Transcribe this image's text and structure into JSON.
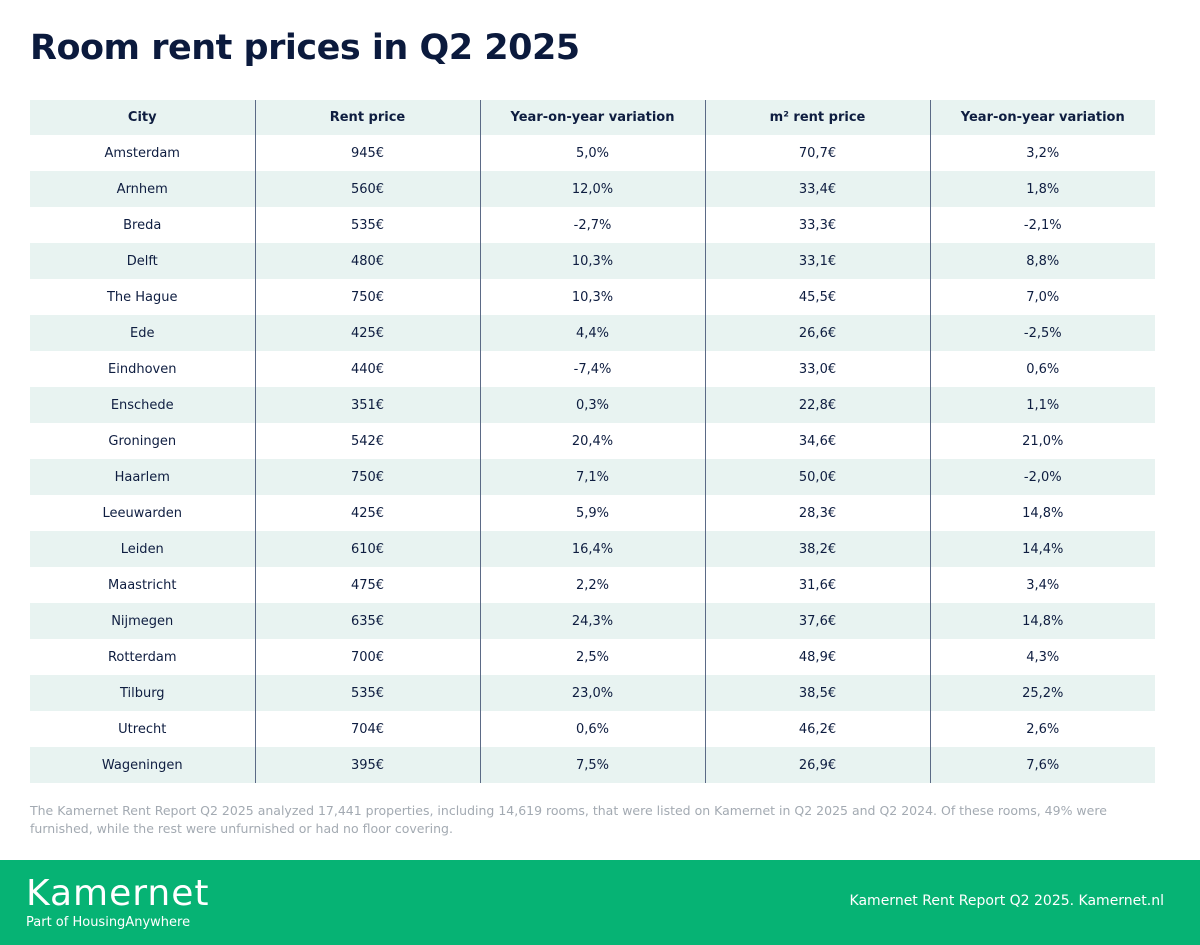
{
  "title": "Room rent prices in Q2 2025",
  "table": {
    "headers": [
      "City",
      "Rent price",
      "Year-on-year variation",
      "m² rent price",
      "Year-on-year variation"
    ],
    "rows": [
      [
        "Amsterdam",
        "945€",
        "5,0%",
        "70,7€",
        "3,2%"
      ],
      [
        "Arnhem",
        "560€",
        "12,0%",
        "33,4€",
        "1,8%"
      ],
      [
        "Breda",
        "535€",
        "-2,7%",
        "33,3€",
        "-2,1%"
      ],
      [
        "Delft",
        "480€",
        "10,3%",
        "33,1€",
        "8,8%"
      ],
      [
        "The Hague",
        "750€",
        "10,3%",
        "45,5€",
        "7,0%"
      ],
      [
        "Ede",
        "425€",
        "4,4%",
        "26,6€",
        "-2,5%"
      ],
      [
        "Eindhoven",
        "440€",
        "-7,4%",
        "33,0€",
        "0,6%"
      ],
      [
        "Enschede",
        "351€",
        "0,3%",
        "22,8€",
        "1,1%"
      ],
      [
        "Groningen",
        "542€",
        "20,4%",
        "34,6€",
        "21,0%"
      ],
      [
        "Haarlem",
        "750€",
        "7,1%",
        "50,0€",
        "-2,0%"
      ],
      [
        "Leeuwarden",
        "425€",
        "5,9%",
        "28,3€",
        "14,8%"
      ],
      [
        "Leiden",
        "610€",
        "16,4%",
        "38,2€",
        "14,4%"
      ],
      [
        "Maastricht",
        "475€",
        "2,2%",
        "31,6€",
        "3,4%"
      ],
      [
        "Nijmegen",
        "635€",
        "24,3%",
        "37,6€",
        "14,8%"
      ],
      [
        "Rotterdam",
        "700€",
        "2,5%",
        "48,9€",
        "4,3%"
      ],
      [
        "Tilburg",
        "535€",
        "23,0%",
        "38,5€",
        "25,2%"
      ],
      [
        "Utrecht",
        "704€",
        "0,6%",
        "46,2€",
        "2,6%"
      ],
      [
        "Wageningen",
        "395€",
        "7,5%",
        "26,9€",
        "7,6%"
      ]
    ]
  },
  "note": "The Kamernet Rent Report Q2 2025 analyzed 17,441 properties, including 14,619 rooms, that were listed on Kamernet in Q2 2025 and Q2 2024. Of these rooms, 49% were furnished, while the rest were unfurnished or had no floor covering.",
  "footer": {
    "logo": "Kamernet",
    "tagline_prefix": "Part of ",
    "tagline_brand": "HousingAnywhere",
    "credit": "Kamernet Rent Report Q2 2025. Kamernet.nl"
  },
  "colors": {
    "brand_green": "#06b374",
    "navy": "#0e1d40",
    "stripe": "#e8f3f1"
  }
}
